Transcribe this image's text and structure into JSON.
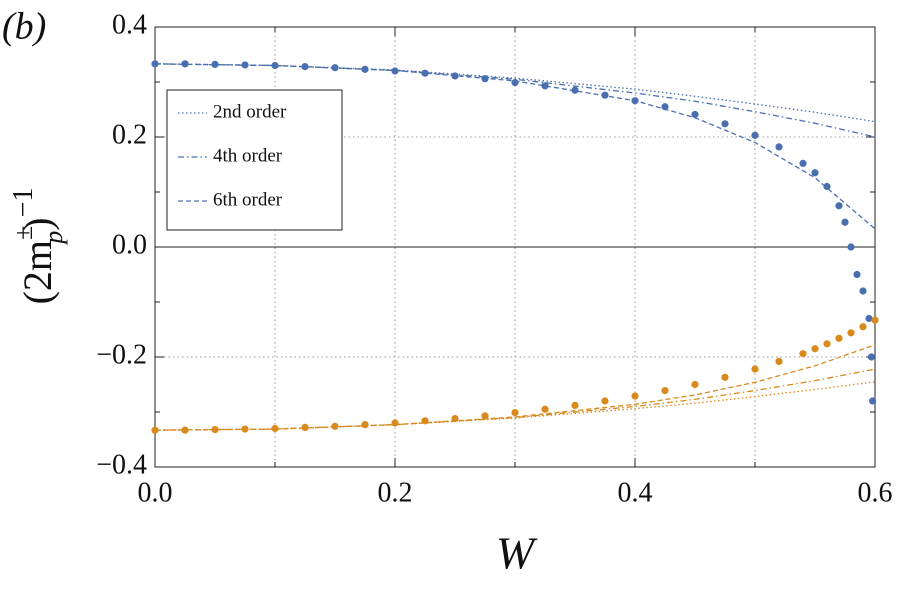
{
  "chart_data": {
    "type": "line",
    "panel_label": "(b)",
    "xlabel": "W",
    "ylabel": {
      "open": "(2m",
      "sup": "±",
      "sub": "p",
      "close": ")",
      "exp": "−1"
    },
    "xlim": [
      0,
      0.6
    ],
    "ylim": [
      -0.4,
      0.4
    ],
    "xticks": [
      {
        "value": 0,
        "label": "0.0"
      },
      0.2,
      0.4,
      {
        "value": 0.6,
        "label": "0.6"
      }
    ],
    "yticks": [
      {
        "value": -0.4,
        "label": "−0.4"
      },
      {
        "value": -0.2,
        "label": "−0.2"
      },
      {
        "value": 0,
        "label": "0.0"
      },
      0.2,
      0.4
    ],
    "xminor": [
      0.1,
      0.3,
      0.5
    ],
    "yminor": [
      -0.3,
      -0.1,
      0.1,
      0.3
    ],
    "grid": true,
    "legend": "upper left",
    "series": [
      {
        "style": "dots",
        "color": "#4a6fb0",
        "x": [
          0,
          0.025,
          0.05,
          0.075,
          0.1,
          0.125,
          0.15,
          0.175,
          0.2,
          0.225,
          0.25,
          0.275,
          0.3,
          0.325,
          0.35,
          0.375,
          0.4,
          0.425,
          0.45,
          0.475,
          0.5,
          0.52,
          0.54,
          0.55,
          0.56,
          0.57,
          0.575,
          0.58,
          0.585,
          0.59,
          0.595,
          0.597,
          0.598
        ],
        "values": [
          0.333,
          0.333,
          0.332,
          0.331,
          0.33,
          0.328,
          0.326,
          0.323,
          0.32,
          0.316,
          0.311,
          0.306,
          0.299,
          0.293,
          0.285,
          0.276,
          0.266,
          0.255,
          0.241,
          0.224,
          0.203,
          0.182,
          0.152,
          0.135,
          0.11,
          0.075,
          0.045,
          0.0,
          -0.05,
          -0.08,
          -0.13,
          -0.2,
          -0.28
        ]
      },
      {
        "style": "dots",
        "color": "#d98a1c",
        "x": [
          0,
          0.025,
          0.05,
          0.075,
          0.1,
          0.125,
          0.15,
          0.175,
          0.2,
          0.225,
          0.25,
          0.275,
          0.3,
          0.325,
          0.35,
          0.375,
          0.4,
          0.425,
          0.45,
          0.475,
          0.5,
          0.52,
          0.54,
          0.55,
          0.56,
          0.57,
          0.58,
          0.59,
          0.6
        ],
        "values": [
          -0.333,
          -0.333,
          -0.332,
          -0.331,
          -0.33,
          -0.328,
          -0.326,
          -0.323,
          -0.32,
          -0.316,
          -0.312,
          -0.307,
          -0.301,
          -0.295,
          -0.288,
          -0.28,
          -0.271,
          -0.261,
          -0.25,
          -0.237,
          -0.222,
          -0.208,
          -0.194,
          -0.185,
          -0.176,
          -0.166,
          -0.156,
          -0.145,
          -0.133
        ]
      },
      {
        "name": "2nd order",
        "style": "dotted",
        "color": "#4a6fb0",
        "x": [
          0,
          0.1,
          0.2,
          0.3,
          0.4,
          0.45,
          0.5,
          0.55,
          0.6
        ],
        "values": [
          0.333,
          0.33,
          0.322,
          0.307,
          0.287,
          0.274,
          0.26,
          0.245,
          0.228
        ]
      },
      {
        "name": "4th order",
        "style": "dashdot",
        "color": "#4a6fb0",
        "x": [
          0,
          0.1,
          0.2,
          0.3,
          0.4,
          0.45,
          0.5,
          0.55,
          0.6
        ],
        "values": [
          0.333,
          0.33,
          0.321,
          0.305,
          0.28,
          0.265,
          0.246,
          0.225,
          0.2
        ]
      },
      {
        "name": "6th order",
        "style": "dashed",
        "color": "#4a6fb0",
        "x": [
          0,
          0.1,
          0.2,
          0.3,
          0.4,
          0.45,
          0.5,
          0.55,
          0.6
        ],
        "values": [
          0.333,
          0.33,
          0.321,
          0.302,
          0.266,
          0.235,
          0.19,
          0.126,
          0.033
        ]
      },
      {
        "style": "dotted",
        "color": "#d98a1c",
        "x": [
          0,
          0.1,
          0.2,
          0.3,
          0.4,
          0.45,
          0.5,
          0.55,
          0.6
        ],
        "values": [
          -0.333,
          -0.331,
          -0.323,
          -0.311,
          -0.294,
          -0.284,
          -0.272,
          -0.259,
          -0.245
        ]
      },
      {
        "style": "dashdot",
        "color": "#d98a1c",
        "x": [
          0,
          0.1,
          0.2,
          0.3,
          0.4,
          0.45,
          0.5,
          0.55,
          0.6
        ],
        "values": [
          -0.333,
          -0.331,
          -0.323,
          -0.31,
          -0.29,
          -0.277,
          -0.261,
          -0.243,
          -0.222
        ]
      },
      {
        "style": "dashed",
        "color": "#d98a1c",
        "x": [
          0,
          0.1,
          0.2,
          0.3,
          0.4,
          0.45,
          0.5,
          0.55,
          0.6
        ],
        "values": [
          -0.333,
          -0.331,
          -0.323,
          -0.309,
          -0.286,
          -0.269,
          -0.246,
          -0.216,
          -0.178
        ]
      }
    ]
  }
}
